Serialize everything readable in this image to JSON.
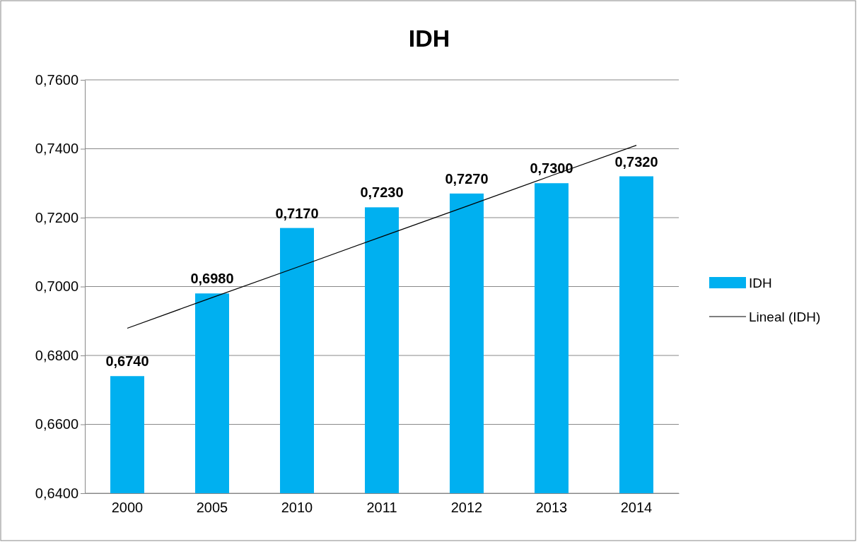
{
  "chart_data": {
    "type": "bar",
    "title": "IDH",
    "categories": [
      "2000",
      "2005",
      "2010",
      "2011",
      "2012",
      "2013",
      "2014"
    ],
    "series": [
      {
        "name": "IDH",
        "color": "#00b0f0",
        "values": [
          0.674,
          0.698,
          0.717,
          0.723,
          0.727,
          0.73,
          0.732
        ],
        "value_labels": [
          "0,6740",
          "0,6980",
          "0,7170",
          "0,7230",
          "0,7270",
          "0,7300",
          "0,7320"
        ]
      },
      {
        "name": "Lineal (IDH)",
        "type": "line",
        "color": "#000000",
        "values": [
          0.6879,
          0.6968,
          0.7056,
          0.7145,
          0.7233,
          0.7322,
          0.741
        ]
      }
    ],
    "ylim": [
      0.64,
      0.76
    ],
    "yticks": [
      {
        "value": 0.64,
        "label": "0,6400"
      },
      {
        "value": 0.66,
        "label": "0,6600"
      },
      {
        "value": 0.68,
        "label": "0,6800"
      },
      {
        "value": 0.7,
        "label": "0,7000"
      },
      {
        "value": 0.72,
        "label": "0,7200"
      },
      {
        "value": 0.74,
        "label": "0,7400"
      },
      {
        "value": 0.76,
        "label": "0,7600"
      }
    ],
    "grid": "y",
    "legend": "right"
  }
}
